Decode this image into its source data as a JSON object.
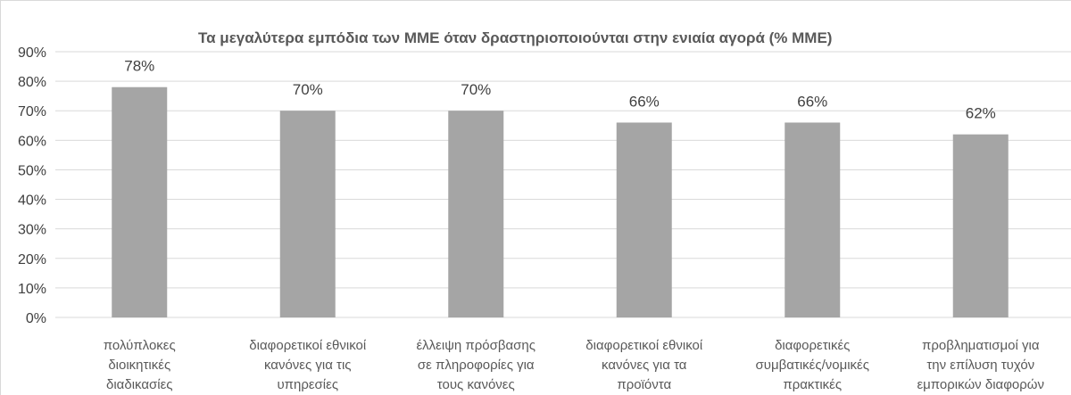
{
  "chart_data": {
    "type": "bar",
    "title": "Τα μεγαλύτερα εμπόδια των ΜΜΕ όταν δραστηριοποιούνται στην ενιαία αγορά (% ΜΜΕ)",
    "xlabel": "",
    "ylabel": "",
    "ylim": [
      0,
      90
    ],
    "yticks": [
      "0%",
      "10%",
      "20%",
      "30%",
      "40%",
      "50%",
      "60%",
      "70%",
      "80%",
      "90%"
    ],
    "grid": true,
    "legend": "none",
    "categories": [
      [
        "πολύπλοκες",
        "διοικητικές",
        "διαδικασίες"
      ],
      [
        "διαφορετικοί  εθνικοί",
        "κανόνες για τις",
        "υπηρεσίες"
      ],
      [
        "έλλειψη πρόσβασης",
        "σε πληροφορίες για",
        "τους κανόνες"
      ],
      [
        "διαφορετικοί  εθνικοί",
        "κανόνες για τα",
        "προϊόντα"
      ],
      [
        "διαφορετικές",
        "συμβατικές/νομικές",
        "πρακτικές"
      ],
      [
        "προβληματισμοί για",
        "την επίλυση τυχόν",
        "εμπορικών  διαφορών"
      ]
    ],
    "values": [
      78,
      70,
      70,
      66,
      66,
      62
    ],
    "data_labels": [
      "78%",
      "70%",
      "70%",
      "66%",
      "66%",
      "62%"
    ],
    "colors": {
      "bar": "#a5a5a5",
      "grid": "#d9d9d9",
      "border": "#d9d9d9"
    }
  }
}
